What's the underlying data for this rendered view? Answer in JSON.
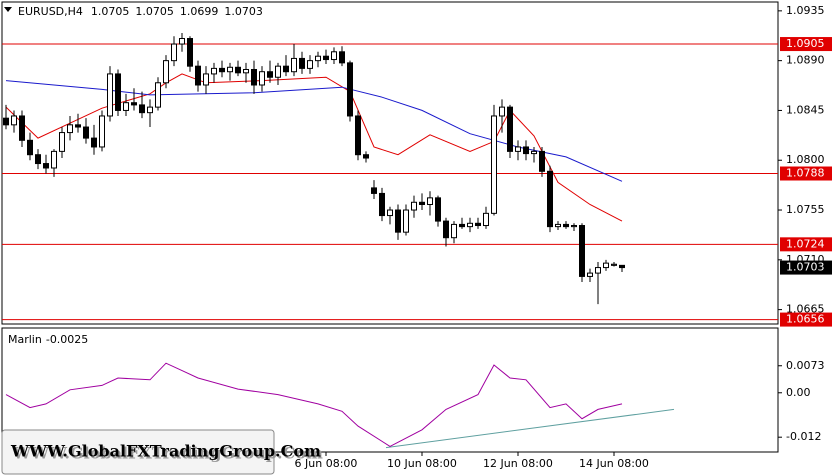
{
  "watermark": "WWW.GlobalFXTradingGroup.Com",
  "chart_data": [
    {
      "type": "candlestick",
      "title": "EURUSD,H4",
      "categories": [
        null,
        null,
        null,
        null,
        null,
        null,
        null,
        null,
        null,
        null,
        null,
        null,
        null,
        null,
        null,
        null,
        null,
        null,
        null,
        null,
        null,
        null,
        null,
        null,
        null,
        null,
        null,
        null,
        null,
        null,
        null,
        null,
        null,
        null,
        null,
        null,
        null,
        null,
        null,
        null,
        "6 Jun 08:00",
        null,
        null,
        null,
        null,
        null,
        null,
        null,
        null,
        null,
        null,
        null,
        "10 Jun 08:00",
        null,
        null,
        null,
        null,
        null,
        null,
        null,
        null,
        null,
        null,
        null,
        "12 Jun 08:00",
        null,
        null,
        null,
        null,
        null,
        null,
        null,
        null,
        null,
        null,
        null,
        "14 Jun 08:00",
        null
      ],
      "open": [
        1.0838,
        1.0832,
        1.084,
        1.0818,
        1.0805,
        1.0797,
        1.0793,
        1.0808,
        1.0825,
        1.0832,
        1.083,
        1.082,
        1.0812,
        1.084,
        1.0878,
        1.0845,
        1.0852,
        1.085,
        1.0843,
        1.0848,
        1.087,
        1.089,
        1.0905,
        1.091,
        1.0885,
        1.0868,
        1.0878,
        1.0883,
        1.088,
        1.0884,
        1.0879,
        1.0882,
        1.0868,
        1.088,
        1.0875,
        1.0885,
        1.088,
        1.0892,
        1.0883,
        1.089,
        1.0894,
        1.0891,
        1.0898,
        1.0888,
        1.084,
        1.0805,
        1.0775,
        1.077,
        1.075,
        1.0755,
        1.0735,
        1.0755,
        1.0762,
        1.076,
        1.0766,
        1.0745,
        1.073,
        1.0742,
        1.074,
        1.0743,
        1.0741,
        1.0752,
        1.084,
        1.0848,
        1.0808,
        1.0812,
        1.0806,
        1.0808,
        1.079,
        1.074,
        1.0742,
        1.074,
        1.0741,
        1.0695,
        1.0698,
        1.0703,
        1.0705,
        1.0705
      ],
      "high": [
        1.085,
        1.0845,
        1.0845,
        1.0825,
        1.081,
        1.0805,
        1.081,
        1.083,
        1.084,
        1.0842,
        1.0838,
        1.0832,
        1.0845,
        1.0885,
        1.0882,
        1.086,
        1.0865,
        1.0862,
        1.0855,
        1.0875,
        1.0895,
        1.0912,
        1.0915,
        1.0912,
        1.089,
        1.0885,
        1.0888,
        1.089,
        1.0888,
        1.089,
        1.0888,
        1.089,
        1.0885,
        1.089,
        1.0888,
        1.0895,
        1.0905,
        1.0898,
        1.0895,
        1.0898,
        1.09,
        1.0902,
        1.0903,
        1.089,
        1.0845,
        1.0808,
        1.0782,
        1.0775,
        1.0758,
        1.076,
        1.076,
        1.0768,
        1.077,
        1.0772,
        1.0768,
        1.0748,
        1.0745,
        1.0748,
        1.0748,
        1.0748,
        1.0758,
        1.085,
        1.0855,
        1.085,
        1.0818,
        1.0818,
        1.0812,
        1.0812,
        1.0795,
        1.0745,
        1.0745,
        1.0743,
        1.0743,
        1.0702,
        1.0708,
        1.071,
        1.0708,
        1.0705
      ],
      "low": [
        1.0828,
        1.0825,
        1.0812,
        1.08,
        1.0792,
        1.0788,
        1.0785,
        1.0802,
        1.0818,
        1.0825,
        1.0815,
        1.0805,
        1.0808,
        1.0835,
        1.084,
        1.084,
        1.0845,
        1.0838,
        1.083,
        1.0845,
        1.0865,
        1.0885,
        1.0898,
        1.088,
        1.0862,
        1.086,
        1.087,
        1.0875,
        1.0872,
        1.0876,
        1.087,
        1.086,
        1.0862,
        1.087,
        1.0868,
        1.0876,
        1.0876,
        1.0878,
        1.0878,
        1.0884,
        1.0887,
        1.0887,
        1.0885,
        1.0835,
        1.08,
        1.0798,
        1.0765,
        1.0745,
        1.0742,
        1.0728,
        1.0732,
        1.0748,
        1.0755,
        1.075,
        1.074,
        1.0722,
        1.0725,
        1.0738,
        1.0735,
        1.0738,
        1.0738,
        1.075,
        1.0825,
        1.0802,
        1.08,
        1.08,
        1.0798,
        1.0785,
        1.0735,
        1.0737,
        1.0738,
        1.0736,
        1.069,
        1.069,
        1.067,
        1.07,
        1.0704,
        1.0699
      ],
      "close": [
        1.0832,
        1.084,
        1.0818,
        1.0805,
        1.0797,
        1.0793,
        1.0808,
        1.0825,
        1.0832,
        1.083,
        1.082,
        1.0812,
        1.084,
        1.0878,
        1.0845,
        1.0852,
        1.085,
        1.0843,
        1.0848,
        1.087,
        1.089,
        1.0905,
        1.091,
        1.0885,
        1.0868,
        1.0878,
        1.0883,
        1.088,
        1.0884,
        1.0879,
        1.0882,
        1.0868,
        1.088,
        1.0875,
        1.0885,
        1.088,
        1.0892,
        1.0883,
        1.089,
        1.0894,
        1.0891,
        1.0898,
        1.0888,
        1.084,
        1.0805,
        1.0802,
        1.077,
        1.075,
        1.0755,
        1.0735,
        1.0755,
        1.0762,
        1.076,
        1.0766,
        1.0745,
        1.073,
        1.0742,
        1.074,
        1.0743,
        1.0741,
        1.0752,
        1.084,
        1.0848,
        1.0808,
        1.0812,
        1.0806,
        1.0808,
        1.079,
        1.074,
        1.0742,
        1.074,
        1.0741,
        1.0695,
        1.0698,
        1.0703,
        1.0707,
        1.0706,
        1.0703
      ],
      "lines": [
        {
          "color": "#e00000",
          "x": [
            0,
            4,
            12,
            18,
            20,
            22,
            25,
            32,
            40,
            43,
            46,
            49,
            53,
            58,
            61,
            63,
            66,
            69,
            73,
            77
          ],
          "values": [
            1.0848,
            1.082,
            1.0847,
            1.086,
            1.087,
            1.0878,
            1.087,
            1.0872,
            1.0875,
            1.0862,
            1.0812,
            1.0805,
            1.0823,
            1.0808,
            1.0817,
            1.0845,
            1.0822,
            1.078,
            1.076,
            1.0745
          ]
        },
        {
          "color": "#1a1acc",
          "x": [
            0,
            12,
            18,
            31,
            42,
            47,
            52,
            58,
            64,
            70,
            77
          ],
          "values": [
            1.0872,
            1.0864,
            1.0859,
            1.0861,
            1.0866,
            1.0857,
            1.0845,
            1.0824,
            1.0812,
            1.0803,
            1.0781
          ]
        }
      ],
      "levels": [
        1.0905,
        1.0788,
        1.0724,
        1.0656
      ],
      "level_color": "#e00000",
      "last_price": 1.0703,
      "xlim": [
        -0.5,
        96.5
      ],
      "ylim": [
        1.0652,
        1.0943
      ],
      "yticks": [
        1.0935,
        {
          "value": 1.089,
          "label": "1.0890"
        },
        1.0845,
        {
          "value": 1.08,
          "label": "1.0800"
        },
        1.0755,
        {
          "value": 1.071,
          "label": "1.0710"
        },
        1.0665
      ]
    },
    {
      "type": "line",
      "name": "Marlin",
      "value": -0.0025,
      "color": "#a000a0",
      "x": [
        0,
        3,
        5,
        8,
        12,
        14,
        18,
        20,
        22,
        24,
        29,
        34,
        39,
        42,
        44,
        48,
        52,
        55,
        59,
        61,
        63,
        65,
        68,
        70,
        72,
        74,
        77
      ],
      "values": [
        -0.0005,
        -0.004,
        -0.003,
        0.0008,
        0.002,
        0.004,
        0.0035,
        0.008,
        0.006,
        0.004,
        0.001,
        -0.0005,
        -0.003,
        -0.005,
        -0.009,
        -0.0145,
        -0.01,
        -0.0045,
        -0.0005,
        0.0075,
        0.004,
        0.0035,
        -0.004,
        -0.003,
        -0.007,
        -0.0045,
        -0.003
      ],
      "trendline": {
        "color": "#5fa0a0",
        "x": [
          47.5,
          83.5
        ],
        "values": [
          -0.0148,
          -0.0045
        ]
      },
      "xlim": [
        -0.5,
        96.5
      ],
      "ylim": [
        -0.016,
        0.0175
      ],
      "yticks": [
        0.0073,
        {
          "value": 0,
          "label": "0.00"
        },
        -0.012
      ]
    }
  ]
}
